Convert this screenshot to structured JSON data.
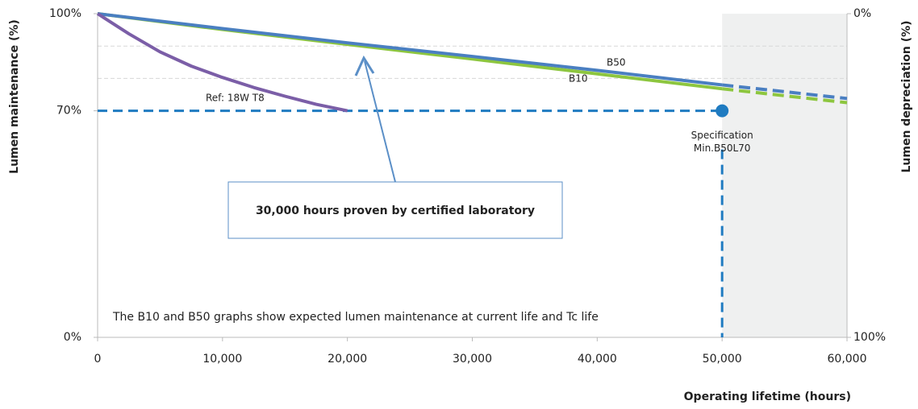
{
  "chart_data": {
    "type": "line",
    "xlabel": "Operating lifetime (hours)",
    "ylabel": "Lumen maintenance (%)",
    "y2label": "Lumen depreciation (%)",
    "xlim": [
      0,
      60000
    ],
    "xticks": [
      0,
      {
        "value": 10000,
        "label": "10,000"
      },
      {
        "value": 20000,
        "label": "20,000"
      },
      {
        "value": 30000,
        "label": "30,000"
      },
      {
        "value": 40000,
        "label": "40,000"
      },
      {
        "value": 50000,
        "label": "50,000"
      },
      {
        "value": 60000,
        "label": "60,000"
      }
    ],
    "ylim": [
      0,
      100
    ],
    "yticks": [
      {
        "value": 0,
        "label": "0%"
      },
      {
        "value": 70,
        "label": "70%"
      },
      {
        "value": 100,
        "label": "100%"
      }
    ],
    "y2lim": [
      100,
      0
    ],
    "y2ticks": [
      {
        "value": 0,
        "label": "0%"
      },
      {
        "value": 100,
        "label": "100%"
      }
    ],
    "grid_lines": [
      80,
      90
    ],
    "series": [
      {
        "name": "B10",
        "color": "#8dc63f",
        "x": [
          0,
          10000,
          20000,
          30000,
          40000,
          50000,
          60000
        ],
        "values": [
          100,
          95.1,
          90.5,
          86,
          81.4,
          76.8,
          72.5
        ]
      },
      {
        "name": "B50",
        "color": "#4a7fc1",
        "x": [
          0,
          10000,
          20000,
          30000,
          40000,
          50000,
          60000
        ],
        "values": [
          100,
          95.4,
          91,
          86.8,
          82.5,
          78,
          73.8
        ]
      },
      {
        "name": "Ref: 18W T8",
        "color": "#7b5ea7",
        "x": [
          0,
          2500,
          5000,
          7500,
          10000,
          12500,
          15000,
          17500,
          20000
        ],
        "values": [
          100,
          93.8,
          88.2,
          83.8,
          80.3,
          77.2,
          74.5,
          72,
          70
        ]
      }
    ],
    "specification": {
      "x": 50000,
      "y": 70,
      "color": "#1f7bc1",
      "label": [
        "Specification",
        "Min.B50L70"
      ]
    },
    "callout": "30,000 hours proven by certified laboratory",
    "note": "The B10 and B50 graphs show expected lumen maintenance at current life and Tc life"
  }
}
